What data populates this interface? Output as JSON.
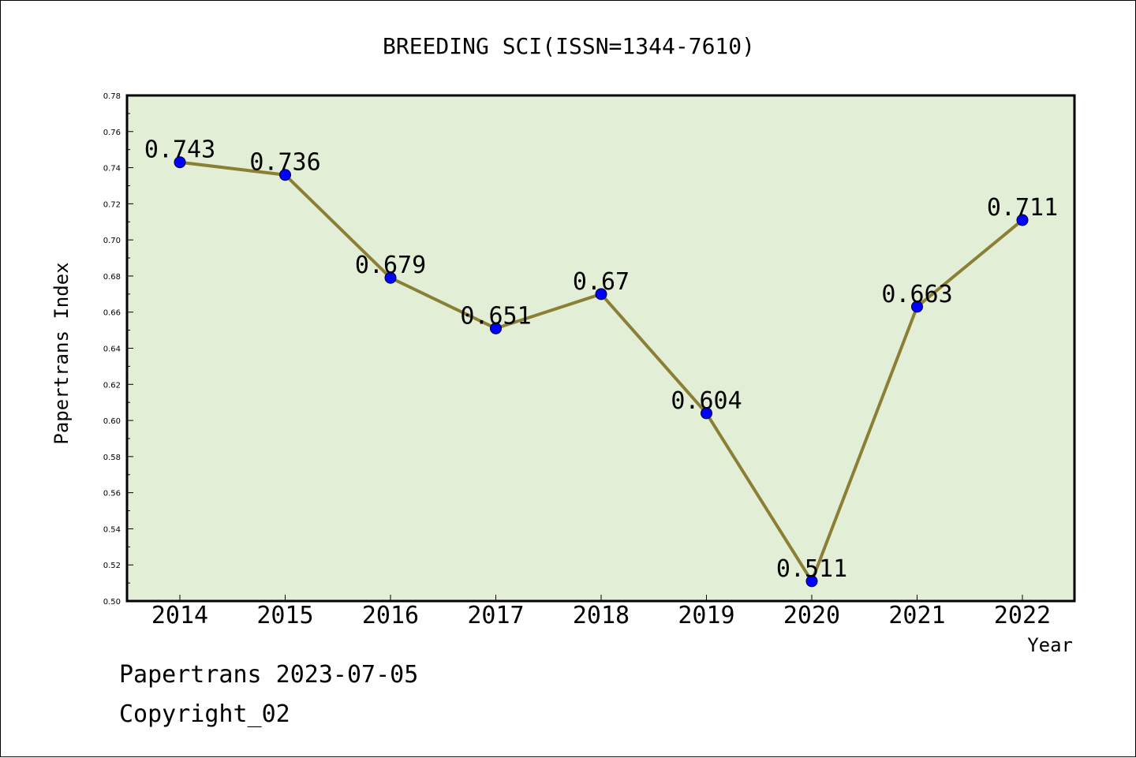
{
  "chart_data": {
    "type": "line",
    "title": "BREEDING SCI(ISSN=1344-7610)",
    "xlabel": "Year",
    "ylabel": "Papertrans Index",
    "categories": [
      "2014",
      "2015",
      "2016",
      "2017",
      "2018",
      "2019",
      "2020",
      "2021",
      "2022"
    ],
    "series": [
      {
        "values": [
          0.743,
          0.736,
          0.679,
          0.651,
          0.67,
          0.604,
          0.511,
          0.663,
          0.711
        ]
      }
    ],
    "data_labels": [
      "0.743",
      "0.736",
      "0.679",
      "0.651",
      "0.67",
      "0.604",
      "0.511",
      "0.663",
      "0.711"
    ],
    "ylim": [
      0.5,
      0.78
    ],
    "yticks": [
      "0.50",
      "0.52",
      "0.54",
      "0.56",
      "0.58",
      "0.60",
      "0.62",
      "0.64",
      "0.66",
      "0.68",
      "0.70",
      "0.72",
      "0.74",
      "0.76",
      "0.78"
    ],
    "grid": false,
    "legend": "none",
    "colors": {
      "plot_background": "#e2efd6",
      "line": "#8b7e35",
      "marker": "#0000ff"
    }
  },
  "footer": {
    "date_line": "Papertrans 2023-07-05",
    "copyright": "Copyright_02"
  }
}
